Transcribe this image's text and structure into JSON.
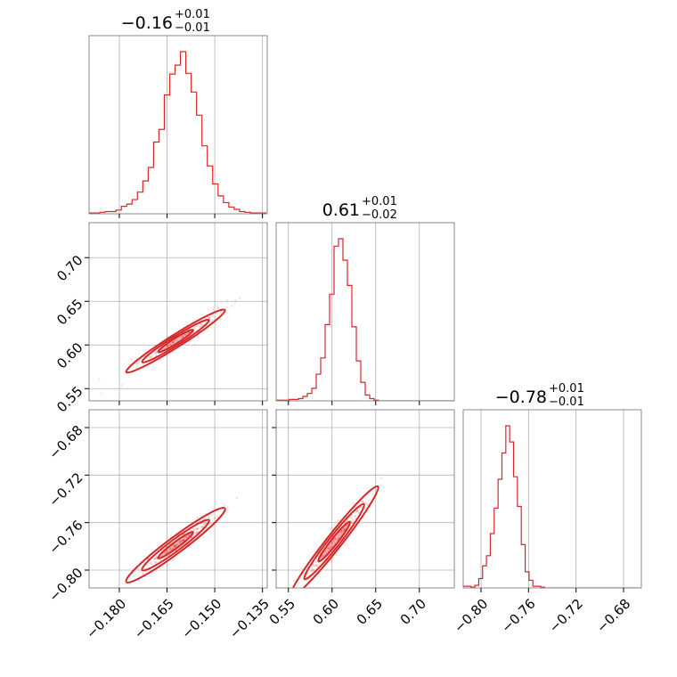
{
  "chart_data": {
    "type": "corner",
    "color": "#d62728",
    "params": [
      {
        "id": "p0",
        "title": {
          "main": "−0.16",
          "plus": "+0.01",
          "minus": "−0.01"
        },
        "range": [
          -0.1895,
          -0.1335
        ],
        "ticks": [
          -0.18,
          -0.165,
          -0.15,
          -0.135
        ],
        "tick_labels": [
          "−0.180",
          "−0.165",
          "−0.150",
          "−0.135"
        ],
        "hist": {
          "edges": [
            -0.1895,
            -0.13375
          ],
          "counts": [
            1,
            1,
            2,
            3,
            3,
            5,
            10,
            13,
            19,
            29,
            44,
            62,
            96,
            113,
            159,
            187,
            199,
            217,
            188,
            163,
            132,
            91,
            64,
            40,
            24,
            15,
            9,
            6,
            3,
            2,
            1,
            1,
            1
          ]
        }
      },
      {
        "id": "p1",
        "title": {
          "main": "0.61",
          "plus": "+0.01",
          "minus": "−0.02"
        },
        "range": [
          0.536,
          0.74
        ],
        "ticks": [
          0.55,
          0.6,
          0.65,
          0.7
        ],
        "tick_labels": [
          "0.55",
          "0.60",
          "0.65",
          "0.70"
        ],
        "hist": {
          "edges": [
            0.536,
            0.74
          ],
          "counts": [
            1,
            1,
            1,
            2,
            2,
            3,
            6,
            10,
            17,
            36,
            58,
            103,
            144,
            209,
            219,
            190,
            156,
            100,
            54,
            25,
            8,
            3,
            1,
            0,
            0,
            0,
            0,
            0,
            0,
            0,
            0,
            0,
            0,
            0,
            0,
            0,
            0,
            0,
            0,
            0
          ]
        }
      },
      {
        "id": "p2",
        "title": {
          "main": "−0.78",
          "plus": "+0.01",
          "minus": "−0.01"
        },
        "range": [
          -0.815,
          -0.665
        ],
        "ticks": [
          -0.8,
          -0.76,
          -0.72,
          -0.68
        ],
        "tick_labels": [
          "−0.80",
          "−0.76",
          "−0.72",
          "−0.68"
        ],
        "hist": {
          "edges": [
            -0.815,
            -0.665
          ],
          "counts": [
            2,
            2,
            1,
            3,
            11,
            26,
            38,
            64,
            94,
            128,
            159,
            191,
            172,
            131,
            96,
            51,
            19,
            9,
            2,
            2,
            1,
            0,
            0,
            0,
            0,
            0,
            0,
            0,
            0,
            0,
            0,
            0,
            0,
            0,
            0,
            0,
            0,
            0,
            0,
            0,
            0,
            0,
            0,
            0,
            0,
            0
          ]
        }
      }
    ],
    "contours": {
      "p0_p1": {
        "center": [
          -0.1623,
          0.6045
        ],
        "direction": [
          1,
          2.3
        ],
        "levels": [
          {
            "a": 0.0055,
            "b": 0.0017,
            "fill": true
          },
          {
            "a": 0.0105,
            "b": 0.0032,
            "fill": false
          },
          {
            "a": 0.0155,
            "b": 0.0045,
            "fill": false
          }
        ],
        "scatter_span": [
          -0.19,
          -0.14
        ]
      },
      "p0_p2": {
        "center": [
          -0.1623,
          -0.779
        ],
        "direction": [
          1,
          2.0
        ],
        "levels": [
          {
            "a": 0.0055,
            "b": 0.0016,
            "fill": true
          },
          {
            "a": 0.0105,
            "b": 0.003,
            "fill": false
          },
          {
            "a": 0.0155,
            "b": 0.0042,
            "fill": false
          }
        ],
        "scatter_span": [
          -0.19,
          -0.14
        ]
      },
      "p1_p2": {
        "center": [
          0.6025,
          -0.776
        ],
        "direction": [
          1,
          0.93
        ],
        "levels": [
          {
            "a": 0.018,
            "b": 0.0017,
            "fill": true
          },
          {
            "a": 0.034,
            "b": 0.0029,
            "fill": false
          },
          {
            "a": 0.05,
            "b": 0.004,
            "fill": false
          }
        ],
        "scatter_span": [
          0.54,
          0.66
        ]
      }
    },
    "grid": true,
    "legend": "none"
  }
}
